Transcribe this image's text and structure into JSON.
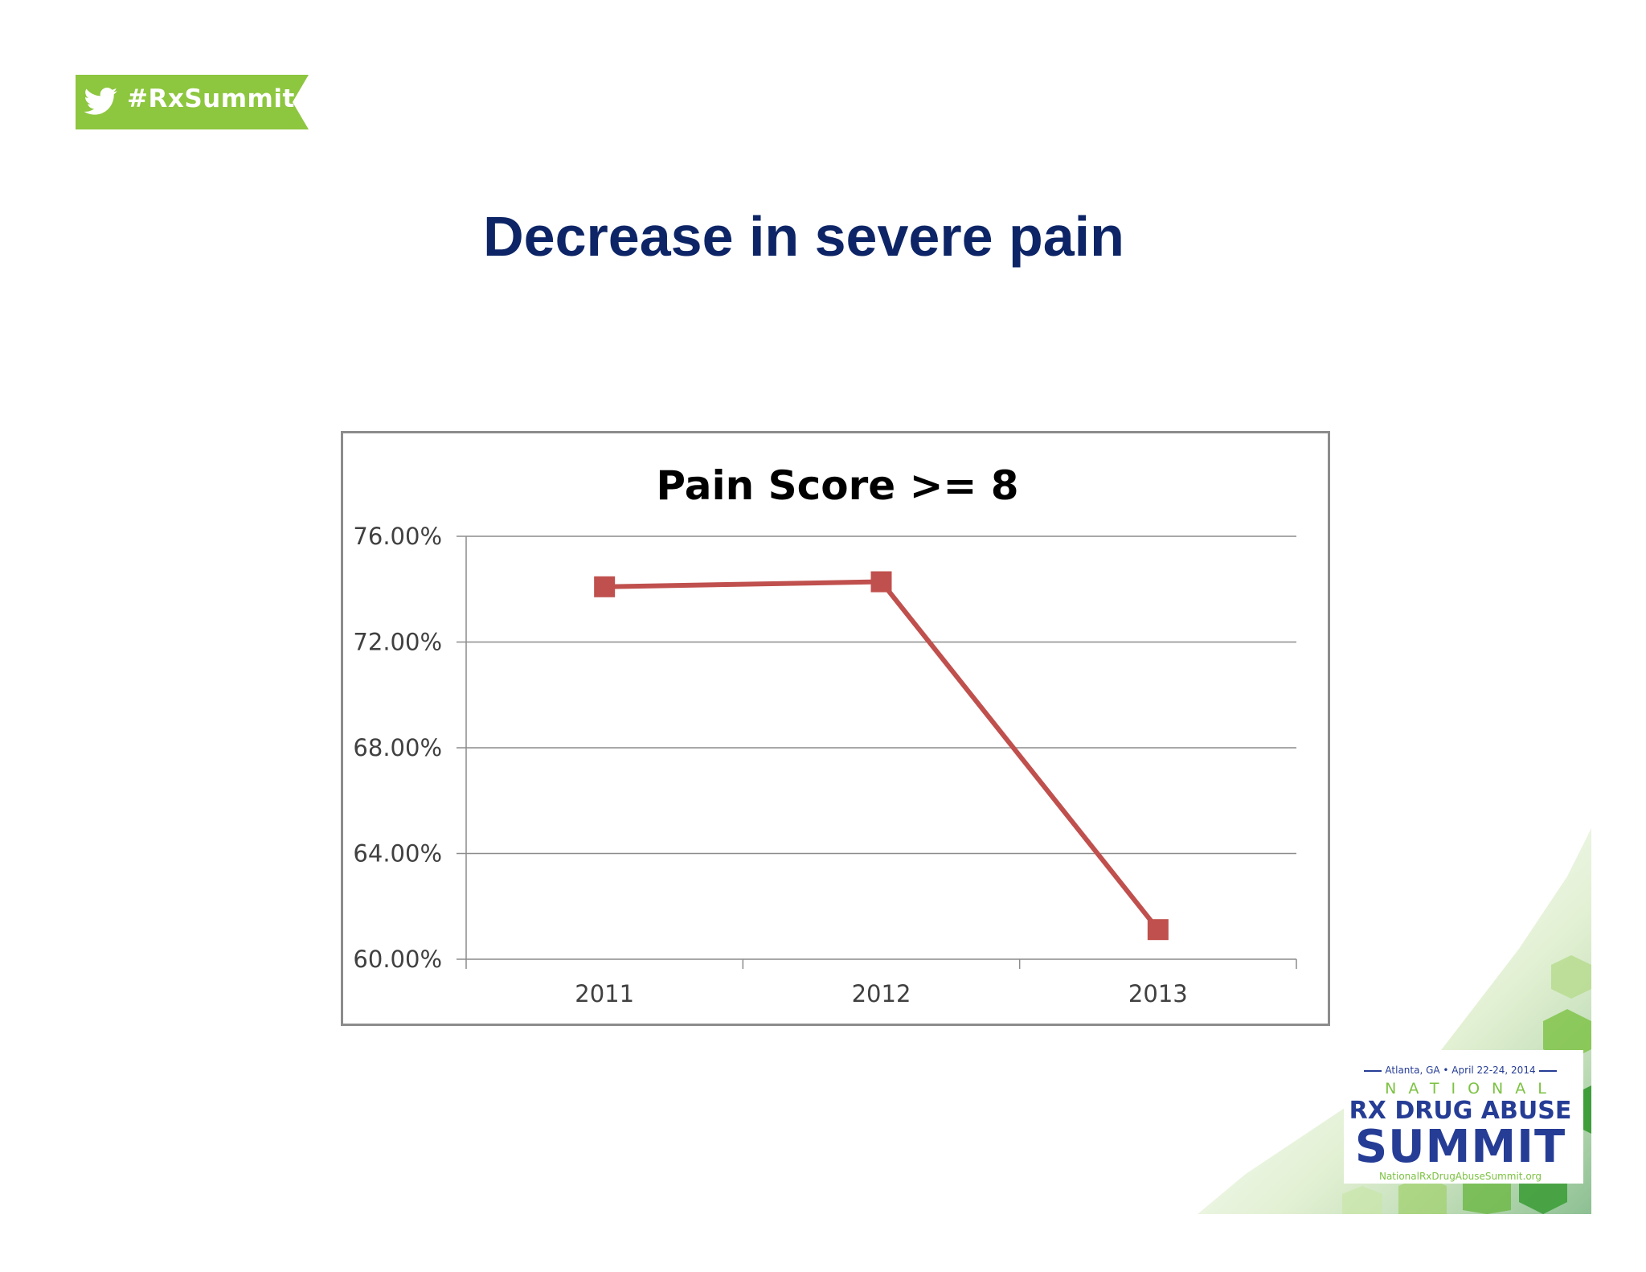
{
  "hashtag": {
    "text": "#RxSummit",
    "color": "#8dc63f"
  },
  "slide": {
    "title": "Decrease in severe pain",
    "title_color": "#0d2566"
  },
  "logo": {
    "date_line": "Atlanta, GA • April 22-24, 2014",
    "national": "NATIONAL",
    "line1": "RX DRUG ABUSE",
    "line2": "SUMMIT",
    "url": "NationalRxDrugAbuseSummit.org"
  },
  "chart_data": {
    "type": "line",
    "title": "Pain Score >= 8",
    "categories": [
      "2011",
      "2012",
      "2013"
    ],
    "series": [
      {
        "values": [
          0.7409,
          0.7428,
          0.6112
        ],
        "color": "#c0504d",
        "marker": "square"
      }
    ],
    "ylim": [
      0.6,
      0.76
    ],
    "yticks": [
      0.6,
      0.64,
      0.68,
      0.72,
      0.76
    ],
    "ytick_labels": [
      "60.00%",
      "64.00%",
      "68.00%",
      "72.00%",
      "76.00%"
    ],
    "grid": true,
    "legend": "none"
  }
}
